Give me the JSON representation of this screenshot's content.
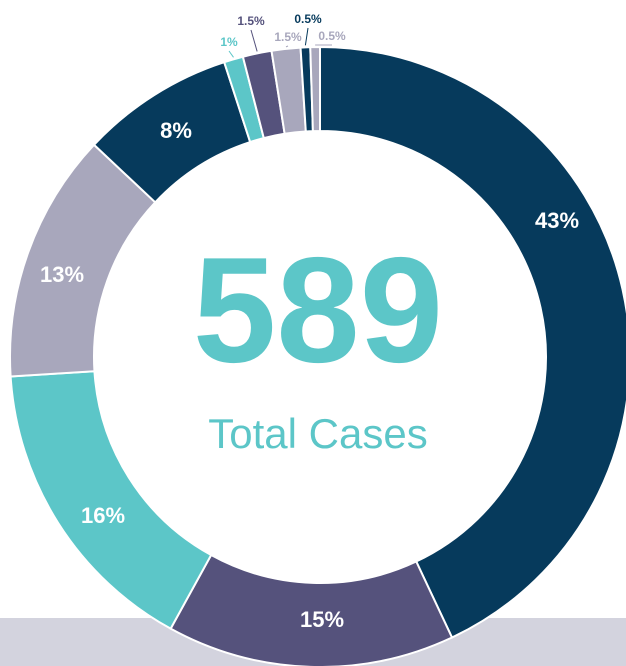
{
  "chart_data": {
    "type": "donut",
    "center_value": "589",
    "center_label": "Total Cases",
    "values": [
      43,
      15,
      16,
      13,
      8,
      1,
      1.5,
      1.5,
      0.5,
      0.5
    ],
    "value_labels": [
      "43%",
      "15%",
      "16%",
      "13%",
      "8%",
      "1%",
      "1.5%",
      "1.5%",
      "0.5%",
      "0.5%"
    ],
    "colors": [
      "#063a5c",
      "#55527c",
      "#5cc6c8",
      "#a8a7bc",
      "#063a5c",
      "#5cc6c8",
      "#55527c",
      "#a8a7bc",
      "#063a5c",
      "#a8a7bc"
    ]
  }
}
